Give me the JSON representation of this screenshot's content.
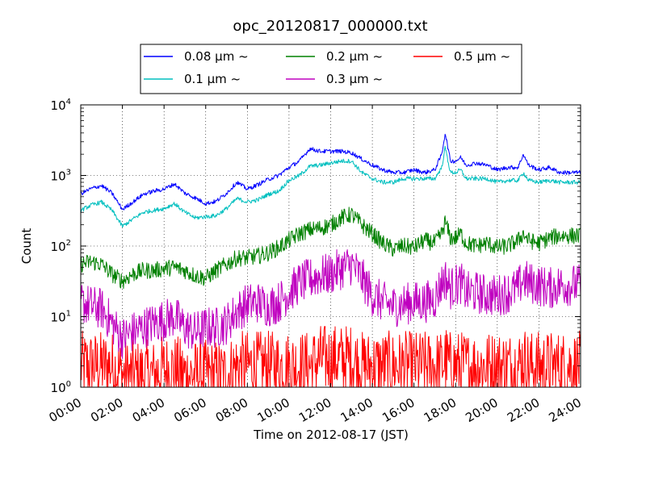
{
  "chart_data": {
    "type": "line",
    "title": "opc_20120817_000000.txt",
    "xlabel": "Time on 2012-08-17 (JST)",
    "ylabel": "Count",
    "x_unit": "time of day",
    "xlim": [
      "00:00",
      "24:00"
    ],
    "ylim": [
      1,
      10000
    ],
    "y_scale": "log",
    "grid": true,
    "legend_position": "top-center",
    "x_ticks": [
      "00:00",
      "02:00",
      "04:00",
      "06:00",
      "08:00",
      "10:00",
      "12:00",
      "14:00",
      "16:00",
      "18:00",
      "20:00",
      "22:00",
      "24:00"
    ],
    "y_ticks": [
      {
        "value": 1,
        "base": "10",
        "exp": "0"
      },
      {
        "value": 10,
        "base": "10",
        "exp": "1"
      },
      {
        "value": 100,
        "base": "10",
        "exp": "2"
      },
      {
        "value": 1000,
        "base": "10",
        "exp": "3"
      },
      {
        "value": 10000,
        "base": "10",
        "exp": "4"
      }
    ],
    "x": [
      "00:00",
      "00:30",
      "01:00",
      "01:30",
      "02:00",
      "02:30",
      "03:00",
      "03:30",
      "04:00",
      "04:30",
      "05:00",
      "05:30",
      "06:00",
      "06:30",
      "07:00",
      "07:30",
      "08:00",
      "08:30",
      "09:00",
      "09:30",
      "10:00",
      "10:30",
      "11:00",
      "11:30",
      "12:00",
      "12:30",
      "13:00",
      "13:30",
      "14:00",
      "14:30",
      "15:00",
      "15:30",
      "16:00",
      "16:30",
      "17:00",
      "17:20",
      "17:30",
      "17:45",
      "18:00",
      "18:15",
      "18:30",
      "19:00",
      "19:30",
      "20:00",
      "20:30",
      "21:00",
      "21:15",
      "21:30",
      "22:00",
      "22:30",
      "23:00",
      "23:30",
      "24:00"
    ],
    "series": [
      {
        "name": "0.08 μm ~",
        "color": "#0000ff",
        "noise": 0.03,
        "values": [
          550,
          650,
          720,
          560,
          330,
          420,
          540,
          600,
          640,
          760,
          560,
          480,
          400,
          430,
          560,
          800,
          640,
          740,
          880,
          1000,
          1300,
          1600,
          2400,
          2200,
          2200,
          2200,
          2100,
          1700,
          1400,
          1200,
          1100,
          1100,
          1200,
          1100,
          1200,
          2000,
          4000,
          1600,
          1600,
          1800,
          1400,
          1500,
          1400,
          1200,
          1300,
          1300,
          2000,
          1400,
          1200,
          1300,
          1100,
          1100,
          1100
        ]
      },
      {
        "name": "0.1 μm ~",
        "color": "#00bfbf",
        "noise": 0.03,
        "values": [
          320,
          380,
          420,
          320,
          190,
          240,
          300,
          320,
          340,
          400,
          300,
          250,
          260,
          270,
          340,
          470,
          420,
          450,
          540,
          600,
          850,
          1000,
          1350,
          1400,
          1500,
          1600,
          1600,
          1100,
          900,
          800,
          800,
          900,
          900,
          900,
          900,
          1300,
          2500,
          1100,
          1100,
          1200,
          900,
          900,
          900,
          800,
          850,
          850,
          1100,
          850,
          800,
          850,
          800,
          800,
          800
        ]
      },
      {
        "name": "0.2 μm ~",
        "color": "#008000",
        "noise": 0.12,
        "values": [
          55,
          60,
          55,
          40,
          32,
          40,
          45,
          45,
          48,
          50,
          45,
          38,
          35,
          45,
          55,
          68,
          68,
          72,
          80,
          95,
          120,
          150,
          170,
          180,
          200,
          250,
          280,
          200,
          150,
          110,
          90,
          100,
          95,
          120,
          110,
          150,
          220,
          130,
          130,
          150,
          110,
          100,
          110,
          95,
          100,
          120,
          150,
          120,
          110,
          130,
          140,
          140,
          140
        ]
      },
      {
        "name": "0.3 μm ~",
        "color": "#bf00bf",
        "noise": 0.3,
        "values": [
          16,
          14,
          13,
          8,
          5,
          6,
          7,
          8,
          9,
          10,
          7,
          6,
          7,
          7,
          8,
          12,
          15,
          16,
          14,
          16,
          22,
          30,
          34,
          38,
          40,
          48,
          55,
          35,
          20,
          16,
          14,
          15,
          16,
          16,
          18,
          30,
          35,
          25,
          28,
          30,
          22,
          22,
          20,
          20,
          22,
          25,
          35,
          30,
          28,
          25,
          28,
          28,
          28
        ]
      },
      {
        "name": "0.5 μm ~",
        "color": "#ff0000",
        "noise": 0.5,
        "values": [
          2,
          2,
          2,
          2,
          1.5,
          1.5,
          1.5,
          1.5,
          1.8,
          1.8,
          1.5,
          1.5,
          1.5,
          1.5,
          1.5,
          2,
          2,
          2,
          2,
          2,
          2,
          2,
          2,
          2.5,
          2.5,
          2.5,
          2.5,
          2,
          2,
          2,
          2,
          2,
          2,
          2,
          2,
          2,
          2.5,
          2,
          2,
          2,
          2,
          2,
          2,
          2,
          2,
          2,
          2.5,
          2,
          2,
          2,
          2,
          2,
          2
        ]
      }
    ]
  }
}
